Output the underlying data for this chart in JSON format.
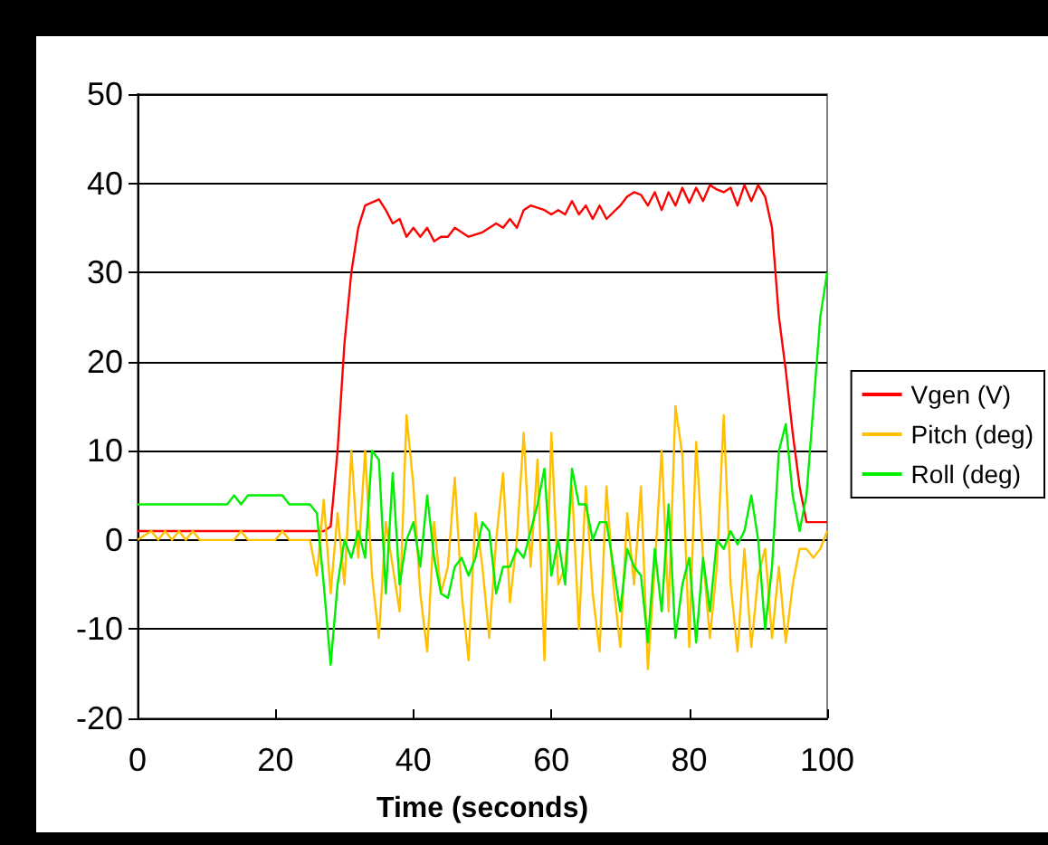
{
  "chart_data": {
    "type": "line",
    "xlabel": "Time (seconds)",
    "xlim": [
      0,
      100
    ],
    "xticks": [
      0,
      20,
      40,
      60,
      80,
      100
    ],
    "ylim": [
      -20,
      50
    ],
    "yticks": [
      -20,
      -10,
      0,
      10,
      20,
      30,
      40,
      50
    ],
    "grid": "y",
    "legend": "right",
    "marker": "none",
    "line_style": "solid",
    "series": [
      {
        "name": "Vgen (V)",
        "color": "#ff0000",
        "x": [
          0,
          5,
          10,
          15,
          20,
          25,
          27,
          28,
          29,
          30,
          31,
          32,
          33,
          35,
          36,
          37,
          38,
          39,
          40,
          41,
          42,
          43,
          44,
          45,
          46,
          48,
          50,
          52,
          53,
          54,
          55,
          56,
          57,
          59,
          60,
          61,
          62,
          63,
          64,
          65,
          66,
          67,
          68,
          70,
          71,
          72,
          73,
          74,
          75,
          76,
          77,
          78,
          79,
          80,
          81,
          82,
          83,
          84,
          85,
          86,
          87,
          88,
          89,
          90,
          91,
          92,
          93,
          94,
          95,
          96,
          97,
          98,
          100
        ],
        "values": [
          1,
          1,
          1,
          1,
          1,
          1,
          1,
          1.5,
          10,
          22,
          30,
          35,
          37.5,
          38.2,
          37,
          35.5,
          36,
          34,
          35,
          34,
          35,
          33.5,
          34,
          34,
          35,
          34,
          34.5,
          35.5,
          35,
          36,
          35,
          37,
          37.5,
          37,
          36.5,
          37,
          36.5,
          38,
          36.5,
          37.5,
          36,
          37.5,
          36,
          37.5,
          38.5,
          39,
          38.7,
          37.5,
          39,
          37,
          39,
          37.5,
          39.5,
          37.8,
          39.5,
          38,
          39.8,
          39.3,
          39,
          39.5,
          37.5,
          39.8,
          38,
          39.8,
          38.5,
          35,
          25,
          19,
          12,
          6,
          2,
          2,
          2
        ]
      },
      {
        "name": "Pitch (deg)",
        "color": "#ffc000",
        "x": [
          0,
          2,
          3,
          4,
          5,
          6,
          7,
          8,
          9,
          10,
          14,
          15,
          16,
          20,
          21,
          22,
          25,
          26,
          27,
          28,
          29,
          30,
          31,
          32,
          33,
          34,
          35,
          36,
          37,
          38,
          39,
          40,
          41,
          42,
          43,
          44,
          45,
          46,
          47,
          48,
          49,
          50,
          51,
          52,
          53,
          54,
          55,
          56,
          57,
          58,
          59,
          60,
          61,
          62,
          63,
          64,
          65,
          66,
          67,
          68,
          69,
          70,
          71,
          72,
          73,
          74,
          75,
          76,
          77,
          78,
          79,
          80,
          81,
          82,
          83,
          84,
          85,
          86,
          87,
          88,
          89,
          90,
          91,
          92,
          93,
          94,
          95,
          96,
          97,
          98,
          99,
          100
        ],
        "values": [
          0,
          1,
          0,
          1,
          0,
          1,
          0,
          1,
          0,
          0,
          0,
          1,
          0,
          0,
          1,
          0,
          0,
          -4,
          4.5,
          -6,
          3,
          -5,
          10,
          -2,
          10,
          -4,
          -11,
          2,
          -3,
          -8,
          14,
          6,
          -6,
          -12.5,
          2,
          -6,
          -3,
          7,
          -6,
          -13.5,
          3,
          -3,
          -11,
          0,
          7.5,
          -7,
          0,
          12,
          -3,
          9,
          -13.5,
          12,
          -5,
          -3,
          6,
          -10,
          6,
          -6,
          -12.5,
          6,
          -5,
          -12,
          3,
          -5,
          6,
          -14.5,
          -3,
          10,
          -8,
          15,
          9.5,
          -12,
          11,
          -2,
          -11,
          -3,
          14,
          -5,
          -12.5,
          -1,
          -12,
          -4,
          -1,
          -11,
          -3,
          -11.5,
          -5,
          -1,
          -1,
          -2,
          -1,
          1
        ]
      },
      {
        "name": "Roll (deg)",
        "color": "#00ee00",
        "x": [
          0,
          13,
          14,
          15,
          16,
          21,
          22,
          25,
          26,
          27,
          28,
          29,
          30,
          31,
          32,
          33,
          34,
          35,
          36,
          37,
          38,
          39,
          40,
          41,
          42,
          43,
          44,
          45,
          46,
          47,
          48,
          49,
          50,
          51,
          52,
          53,
          54,
          55,
          56,
          57,
          58,
          59,
          60,
          61,
          62,
          63,
          64,
          65,
          66,
          67,
          68,
          69,
          70,
          71,
          72,
          73,
          74,
          75,
          76,
          77,
          78,
          79,
          80,
          81,
          82,
          83,
          84,
          85,
          86,
          87,
          88,
          89,
          90,
          91,
          92,
          93,
          94,
          95,
          96,
          97,
          98,
          99,
          100
        ],
        "values": [
          4,
          4,
          5,
          4,
          5,
          5,
          4,
          4,
          3,
          -5,
          -14,
          -5,
          0,
          -2,
          1,
          -2,
          10,
          9,
          -6,
          7.5,
          -5,
          0,
          2,
          -3,
          5,
          -2,
          -6,
          -6.5,
          -3,
          -2,
          -4,
          -2,
          2,
          1,
          -6,
          -3,
          -3,
          -1,
          -2,
          1,
          4,
          8,
          -4,
          0,
          -5,
          8,
          4,
          4,
          0,
          2,
          2,
          -3,
          -8,
          -1,
          -3,
          -4,
          -11.5,
          -1,
          -8,
          4,
          -11,
          -5,
          -2,
          -11.5,
          -2,
          -8,
          0,
          -1,
          1,
          -0.5,
          1,
          5,
          0,
          -10,
          -3,
          10,
          13,
          5,
          1,
          5,
          15,
          25,
          30
        ]
      }
    ]
  }
}
